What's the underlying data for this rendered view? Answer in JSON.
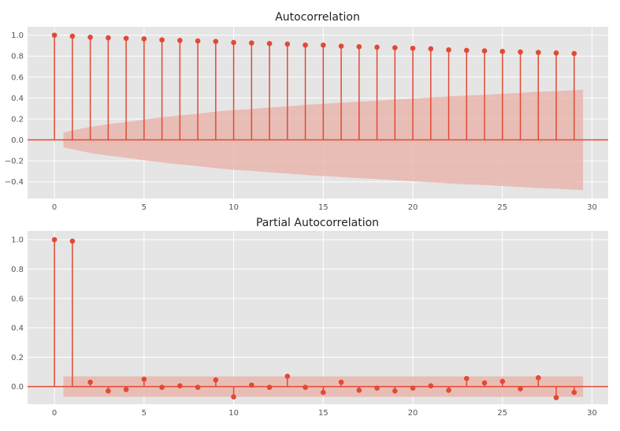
{
  "chart_data": [
    {
      "type": "stem",
      "title": "Autocorrelation",
      "xlabel": "",
      "ylabel": "",
      "x": [
        0,
        1,
        2,
        3,
        4,
        5,
        6,
        7,
        8,
        9,
        10,
        11,
        12,
        13,
        14,
        15,
        16,
        17,
        18,
        19,
        20,
        21,
        22,
        23,
        24,
        25,
        26,
        27,
        28,
        29
      ],
      "values": [
        1.0,
        0.99,
        0.98,
        0.975,
        0.97,
        0.965,
        0.955,
        0.95,
        0.945,
        0.94,
        0.93,
        0.925,
        0.92,
        0.915,
        0.905,
        0.905,
        0.895,
        0.89,
        0.885,
        0.88,
        0.875,
        0.87,
        0.86,
        0.855,
        0.85,
        0.845,
        0.84,
        0.835,
        0.83,
        0.825
      ],
      "confidence_band": {
        "x": [
          0.5,
          1,
          2,
          3,
          4,
          5,
          6,
          7,
          8,
          9,
          10,
          11,
          12,
          13,
          14,
          15,
          16,
          17,
          18,
          19,
          20,
          21,
          22,
          23,
          24,
          25,
          26,
          27,
          28,
          29,
          29.5
        ],
        "upper": [
          0.07,
          0.09,
          0.125,
          0.15,
          0.17,
          0.195,
          0.215,
          0.235,
          0.25,
          0.27,
          0.285,
          0.295,
          0.31,
          0.32,
          0.335,
          0.345,
          0.355,
          0.365,
          0.375,
          0.385,
          0.395,
          0.405,
          0.415,
          0.425,
          0.43,
          0.44,
          0.45,
          0.46,
          0.465,
          0.475,
          0.48
        ]
      },
      "xlim": [
        -1.5,
        30.9
      ],
      "ylim": [
        -0.56,
        1.08
      ],
      "xticks": [
        0,
        5,
        10,
        15,
        20,
        25,
        30
      ],
      "yticks": [
        -0.4,
        -0.2,
        0.0,
        0.2,
        0.4,
        0.6,
        0.8,
        1.0
      ],
      "ytick_labels": [
        "−0.4",
        "−0.2",
        "0.0",
        "0.2",
        "0.4",
        "0.6",
        "0.8",
        "1.0"
      ],
      "grid": true,
      "color": "#E24A33",
      "band_color": "#E8B3AA",
      "background": "#E5E5E5"
    },
    {
      "type": "stem",
      "title": "Partial Autocorrelation",
      "xlabel": "",
      "ylabel": "",
      "x": [
        0,
        1,
        2,
        3,
        4,
        5,
        6,
        7,
        8,
        9,
        10,
        11,
        12,
        13,
        14,
        15,
        16,
        17,
        18,
        19,
        20,
        21,
        22,
        23,
        24,
        25,
        26,
        27,
        28,
        29
      ],
      "values": [
        1.0,
        0.99,
        0.03,
        -0.03,
        -0.02,
        0.05,
        -0.005,
        0.005,
        -0.005,
        0.045,
        -0.07,
        0.01,
        -0.005,
        0.07,
        -0.005,
        -0.04,
        0.03,
        -0.025,
        -0.01,
        -0.03,
        -0.01,
        0.005,
        -0.025,
        0.055,
        0.025,
        0.035,
        -0.015,
        0.06,
        -0.075,
        -0.04
      ],
      "confidence_band": {
        "x": [
          0.5,
          29.5
        ],
        "upper": [
          0.07,
          0.07
        ]
      },
      "xlim": [
        -1.5,
        30.9
      ],
      "ylim": [
        -0.12,
        1.06
      ],
      "xticks": [
        0,
        5,
        10,
        15,
        20,
        25,
        30
      ],
      "yticks": [
        0.0,
        0.2,
        0.4,
        0.6,
        0.8,
        1.0
      ],
      "ytick_labels": [
        "0.0",
        "0.2",
        "0.4",
        "0.6",
        "0.8",
        "1.0"
      ],
      "grid": true,
      "color": "#E24A33",
      "band_color": "#E8B3AA",
      "background": "#E5E5E5"
    }
  ]
}
